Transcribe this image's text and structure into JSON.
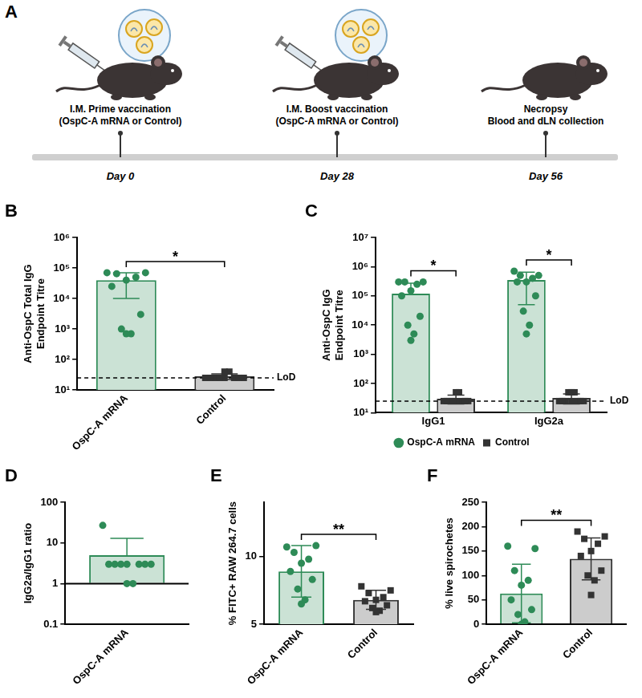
{
  "diagram": {
    "panel": "A",
    "events": [
      {
        "day": "Day 0",
        "title": "I.M. Prime vaccination",
        "subtitle": "(OspC-A mRNA or Control)"
      },
      {
        "day": "Day 28",
        "title": "I.M. Boost vaccination",
        "subtitle": "(OspC-A mRNA or Control)"
      },
      {
        "day": "Day 56",
        "title": "Necropsy",
        "subtitle": "Blood and dLN collection"
      }
    ]
  },
  "chart_data": [
    {
      "panel": "B",
      "type": "bar",
      "log": "y",
      "grid": false,
      "y_label": [
        "Anti-OspC Total IgG",
        "Endpoint Titre"
      ],
      "categories": [
        "OspC-A mRNA",
        "Control"
      ],
      "series": [
        {
          "name": "OspC-A mRNA",
          "color": "#2e8b57",
          "marker": "circle",
          "values": [
            40000,
            null
          ],
          "errors": [
            30000,
            null
          ],
          "points": [
            [
              70000,
              70000,
              65000,
              50000,
              40000,
              25000,
              3000,
              1000,
              700,
              700
            ],
            null
          ]
        },
        {
          "name": "Control",
          "color": "#333333",
          "marker": "square",
          "values": [
            null,
            28
          ],
          "errors": [
            null,
            6
          ],
          "points": [
            null,
            [
              25,
              25,
              25,
              25,
              25,
              25,
              25,
              25,
              40,
              40
            ]
          ]
        }
      ],
      "ylim": [
        10,
        1000000
      ],
      "yticks": [
        {
          "value": 10,
          "label": "10¹"
        },
        {
          "value": 100,
          "label": "10²"
        },
        {
          "value": 1000,
          "label": "10³"
        },
        {
          "value": 10000,
          "label": "10⁴"
        },
        {
          "value": 100000,
          "label": "10⁵"
        },
        {
          "value": 1000000,
          "label": "10⁶"
        }
      ],
      "reference_lines": [
        {
          "value": 25,
          "label": "LoD",
          "line_style": "dashed"
        }
      ],
      "annotations": [
        {
          "label": "*",
          "between": [
            "OspC-A mRNA",
            "Control"
          ]
        }
      ]
    },
    {
      "panel": "C",
      "type": "bar",
      "log": "y",
      "grid": false,
      "legend": "bottom",
      "y_label": [
        "Anti-OspC IgG",
        "Endpoint Titre"
      ],
      "categories": [
        "IgG1",
        "IgG2a"
      ],
      "series": [
        {
          "name": "OspC-A mRNA",
          "color": "#2e8b57",
          "marker": "circle",
          "values": [
            120000,
            350000
          ],
          "errors": [
            150000,
            300000
          ],
          "points": [
            [
              300000,
              300000,
              300000,
              250000,
              150000,
              100000,
              20000,
              10000,
              5000,
              3000
            ],
            [
              700000,
              500000,
              500000,
              400000,
              300000,
              300000,
              100000,
              30000,
              10000,
              5000
            ]
          ]
        },
        {
          "name": "Control",
          "color": "#333333",
          "marker": "square",
          "values": [
            30,
            32
          ],
          "errors": [
            10,
            12
          ],
          "points": [
            [
              25,
              25,
              25,
              25,
              25,
              25,
              25,
              25,
              50,
              50
            ],
            [
              25,
              25,
              25,
              25,
              25,
              25,
              25,
              50,
              50,
              50
            ]
          ]
        }
      ],
      "ylim": [
        10,
        10000000
      ],
      "yticks": [
        {
          "value": 10,
          "label": "10¹"
        },
        {
          "value": 100,
          "label": "10²"
        },
        {
          "value": 1000,
          "label": "10³"
        },
        {
          "value": 10000,
          "label": "10⁴"
        },
        {
          "value": 100000,
          "label": "10⁵"
        },
        {
          "value": 1000000,
          "label": "10⁶"
        },
        {
          "value": 10000000,
          "label": "10⁷"
        }
      ],
      "reference_lines": [
        {
          "value": 25,
          "label": "LoD",
          "line_style": "dashed"
        }
      ],
      "annotations": [
        {
          "label": "*",
          "group": "IgG1"
        },
        {
          "label": "*",
          "group": "IgG2a"
        }
      ]
    },
    {
      "panel": "D",
      "type": "bar",
      "log": "y",
      "grid": false,
      "y_label": "IgG2a/IgG1 ratio",
      "categories": [
        "OspC-A mRNA"
      ],
      "baseline": 1,
      "series": [
        {
          "name": "OspC-A mRNA",
          "color": "#2e8b57",
          "marker": "circle",
          "values": [
            5
          ],
          "errors": [
            8
          ],
          "points": [
            [
              27,
              3,
              3,
              3,
              3,
              3,
              3,
              3,
              1,
              1
            ]
          ]
        }
      ],
      "ylim": [
        0.1,
        100
      ],
      "yticks": [
        0.1,
        1,
        10,
        100
      ]
    },
    {
      "panel": "E",
      "type": "bar",
      "grid": false,
      "y_label": "% FITC+ RAW 264.7 cells",
      "categories": [
        "OspC-A mRNA",
        "Control"
      ],
      "series": [
        {
          "name": "OspC-A mRNA",
          "color": "#2e8b57",
          "marker": "circle",
          "values": [
            8.9,
            null
          ],
          "errors": [
            1.9,
            null
          ],
          "points": [
            [
              10.7,
              10.8,
              10.3,
              9.8,
              9.5,
              8.9,
              8.3,
              7.6,
              6.8,
              6.5
            ],
            null
          ]
        },
        {
          "name": "Control",
          "color": "#333333",
          "marker": "square",
          "values": [
            null,
            6.8
          ],
          "errors": [
            null,
            0.7
          ],
          "points": [
            null,
            [
              7.8,
              7.5,
              7.3,
              7.0,
              6.8,
              6.7,
              6.4,
              6.2,
              6.0,
              5.9
            ]
          ]
        }
      ],
      "ylim": [
        5,
        14
      ],
      "yticks": [
        5,
        10
      ],
      "annotations": [
        {
          "label": "**",
          "between": [
            "OspC-A mRNA",
            "Control"
          ]
        }
      ]
    },
    {
      "panel": "F",
      "type": "bar",
      "grid": false,
      "y_label": "% live spirochetes",
      "categories": [
        "OspC-A mRNA",
        "Control"
      ],
      "series": [
        {
          "name": "OspC-A mRNA",
          "color": "#2e8b57",
          "marker": "circle",
          "values": [
            63,
            null
          ],
          "errors": [
            60,
            null
          ],
          "points": [
            [
              160,
              155,
              110,
              90,
              80,
              50,
              30,
              20,
              5,
              0
            ],
            null
          ]
        },
        {
          "name": "Control",
          "color": "#333333",
          "marker": "square",
          "values": [
            null,
            134
          ],
          "errors": [
            null,
            43
          ],
          "points": [
            null,
            [
              190,
              180,
              175,
              165,
              150,
              140,
              110,
              100,
              90,
              60
            ]
          ]
        }
      ],
      "ylim": [
        0,
        250
      ],
      "yticks": [
        0,
        50,
        100,
        150,
        200,
        250
      ],
      "annotations": [
        {
          "label": "**",
          "between": [
            "OspC-A mRNA",
            "Control"
          ]
        }
      ]
    }
  ]
}
